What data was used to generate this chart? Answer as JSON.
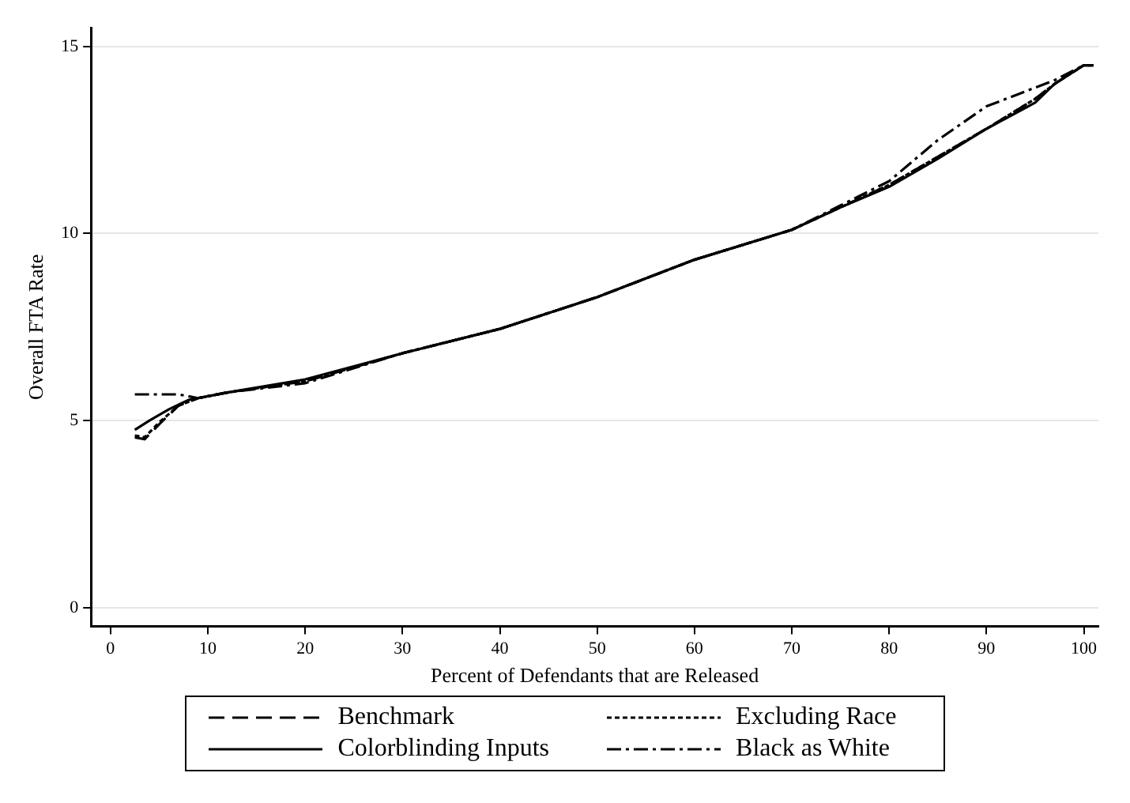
{
  "chart_data": {
    "type": "line",
    "xlabel": "Percent of Defendants that are Released",
    "ylabel": "Overall FTA Rate",
    "xlim": [
      -2,
      101.5
    ],
    "xticks": [
      0,
      10,
      20,
      30,
      40,
      50,
      60,
      70,
      80,
      90,
      100
    ],
    "ylim": [
      -0.5,
      15.5
    ],
    "yticks": [
      0,
      5,
      10,
      15
    ],
    "grid": "y",
    "legend": "bottom",
    "marker": "none",
    "series": [
      {
        "name": "Benchmark",
        "color": "#000000",
        "line_style": "dashed",
        "x": [
          2.5,
          3.5,
          5,
          7,
          9,
          12,
          20,
          30,
          40,
          50,
          60,
          70,
          75,
          80,
          85,
          90,
          95,
          97,
          100,
          101
        ],
        "values": [
          4.55,
          4.5,
          4.9,
          5.4,
          5.6,
          5.75,
          6.05,
          6.8,
          7.45,
          8.3,
          9.3,
          10.1,
          10.7,
          11.3,
          12.05,
          12.8,
          13.6,
          14.0,
          14.5,
          14.5
        ]
      },
      {
        "name": "Colorblinding Inputs",
        "color": "#000000",
        "line_style": "solid",
        "x": [
          2.5,
          4,
          6,
          8,
          10,
          12,
          20,
          30,
          40,
          50,
          60,
          70,
          75,
          80,
          85,
          90,
          95,
          97,
          100,
          101
        ],
        "values": [
          4.75,
          5.0,
          5.3,
          5.55,
          5.65,
          5.75,
          6.1,
          6.8,
          7.45,
          8.3,
          9.3,
          10.1,
          10.7,
          11.25,
          12.0,
          12.8,
          13.5,
          14.0,
          14.5,
          14.5
        ]
      },
      {
        "name": "Excluding Race",
        "color": "#000000",
        "line_style": "dotted",
        "x": [
          2.5,
          3.5,
          5,
          7,
          9,
          12,
          20,
          30,
          40,
          50,
          60,
          70,
          75,
          80,
          85,
          90,
          95,
          97,
          100,
          101
        ],
        "values": [
          4.6,
          4.55,
          4.95,
          5.4,
          5.6,
          5.75,
          6.05,
          6.8,
          7.45,
          8.3,
          9.3,
          10.1,
          10.7,
          11.3,
          12.05,
          12.8,
          13.6,
          14.0,
          14.5,
          14.5
        ]
      },
      {
        "name": "Black as White",
        "color": "#000000",
        "line_style": "dashdot",
        "x": [
          2.5,
          5,
          7,
          9,
          12,
          20,
          30,
          40,
          50,
          60,
          70,
          75,
          80,
          85,
          90,
          95,
          97,
          100,
          101
        ],
        "values": [
          5.7,
          5.7,
          5.7,
          5.6,
          5.75,
          6.0,
          6.8,
          7.45,
          8.3,
          9.3,
          10.1,
          10.75,
          11.4,
          12.5,
          13.4,
          13.9,
          14.1,
          14.5,
          14.5
        ]
      }
    ]
  }
}
